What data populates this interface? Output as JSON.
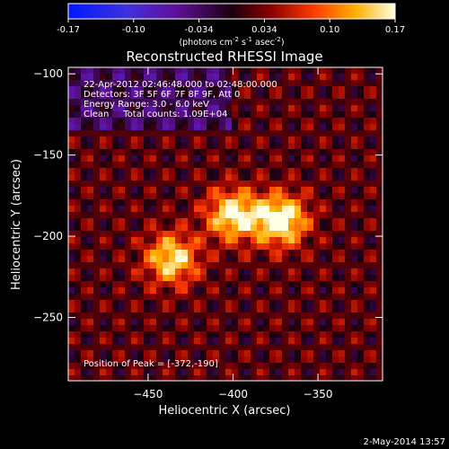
{
  "colorbar": {
    "ticks": [
      "-0.17",
      "-0.10",
      "-0.034",
      "0.034",
      "0.10",
      "0.17"
    ],
    "units_prefix": "(photons cm",
    "units_exp1": "-2",
    "units_mid": " s",
    "units_exp2": "-1",
    "units_mid2": " asec",
    "units_exp3": "-2",
    "units_suffix": ")"
  },
  "chart_data": {
    "type": "heatmap",
    "title": "Reconstructed RHESSI Image",
    "xlabel": "Heliocentric X (arcsec)",
    "ylabel": "Heliocentric Y (arcsec)",
    "xlim": [
      -497,
      -312
    ],
    "ylim": [
      -289,
      -96
    ],
    "xticks": [
      -450,
      -400,
      -350
    ],
    "yticks": [
      -100,
      -150,
      -200,
      -250
    ],
    "colorbar_range": [
      -0.17,
      0.17
    ],
    "sources": [
      {
        "x": -372,
        "y": -190,
        "peak": 0.17
      },
      {
        "x": -400,
        "y": -187,
        "peak": 0.15
      },
      {
        "x": -436,
        "y": -214,
        "peak": 0.14
      }
    ],
    "info": [
      "22-Apr-2012 02:46:48.000 to 02:48:00.000",
      "Detectors: 3F 5F 6F 7F 8F 9F, Att 0",
      "Energy Range: 3.0 - 6.0 keV",
      "Clean     Total counts: 1.09E+04"
    ],
    "peak_label": "Position of Peak = [-372,-190]"
  },
  "footer": {
    "date": "2-May-2014 13:57"
  }
}
